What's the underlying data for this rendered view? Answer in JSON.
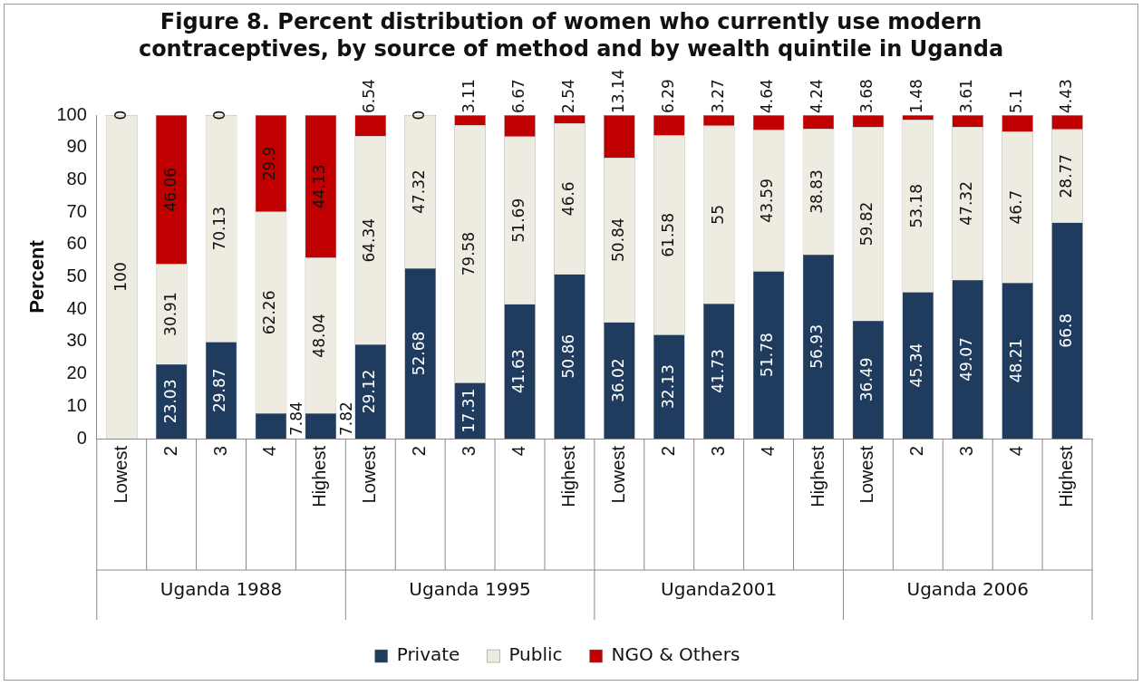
{
  "chart_data": {
    "type": "bar",
    "title": "Figure 8. Percent distribution of women who currently use modern contraceptives, by source of method and by wealth quintile in Uganda",
    "ylabel": "Percent",
    "categories": [
      "Lowest",
      "2",
      "3",
      "4",
      "Highest",
      "Lowest",
      "2",
      "3",
      "4",
      "Highest",
      "Lowest",
      "2",
      "3",
      "4",
      "Highest",
      "Lowest",
      "2",
      "3",
      "4",
      "Highest"
    ],
    "annotations": [
      "Uganda 1988",
      "Uganda 1995",
      "Uganda2001",
      "Uganda 2006"
    ],
    "stacked": true,
    "series": [
      {
        "name": "Private",
        "color": "#1f3b5e",
        "values": [
          0,
          23.03,
          29.87,
          7.84,
          7.82,
          29.12,
          52.68,
          17.31,
          41.63,
          50.86,
          36.02,
          32.13,
          41.73,
          51.78,
          56.93,
          36.49,
          45.34,
          49.07,
          48.21,
          66.8
        ],
        "value_labels": [
          null,
          "23.03",
          "29.87",
          "7.84",
          "7.82",
          "29.12",
          "52.68",
          "17.31",
          "41.63",
          "50.86",
          "36.02",
          "32.13",
          "41.73",
          "51.78",
          "56.93",
          "36.49",
          "45.34",
          "49.07",
          "48.21",
          "66.8"
        ]
      },
      {
        "name": "Public",
        "color": "#eeece1",
        "values": [
          100,
          30.91,
          70.13,
          62.26,
          48.04,
          64.34,
          47.32,
          79.58,
          51.69,
          46.6,
          50.84,
          61.58,
          55,
          43.59,
          38.83,
          59.82,
          53.18,
          47.32,
          46.7,
          28.77
        ],
        "value_labels": [
          "100",
          "30.91",
          "70.13",
          "62.26",
          "48.04",
          "64.34",
          "47.32",
          "79.58",
          "51.69",
          "46.6",
          "50.84",
          "61.58",
          "55",
          "43.59",
          "38.83",
          "59.82",
          "53.18",
          "47.32",
          "46.7",
          "28.77"
        ]
      },
      {
        "name": "NGO & Others",
        "color": "#c00000",
        "values": [
          0,
          46.06,
          0,
          29.9,
          44.13,
          6.54,
          0,
          3.11,
          6.67,
          2.54,
          13.14,
          6.29,
          3.27,
          4.64,
          4.24,
          3.68,
          1.48,
          3.61,
          5.1,
          4.43
        ],
        "value_labels": [
          "0",
          "46.06",
          "0",
          "29.9",
          "44.13",
          "6.54",
          "0",
          "3.11",
          "6.67",
          "2.54",
          "13.14",
          "6.29",
          "3.27",
          "4.64",
          "4.24",
          "3.68",
          "1.48",
          "3.61",
          "5.1",
          "4.43"
        ]
      }
    ],
    "ylim": [
      0,
      100
    ],
    "yticks": [
      0,
      10,
      20,
      30,
      40,
      50,
      60,
      70,
      80,
      90,
      100
    ],
    "grid": false,
    "legend": "bottom"
  }
}
